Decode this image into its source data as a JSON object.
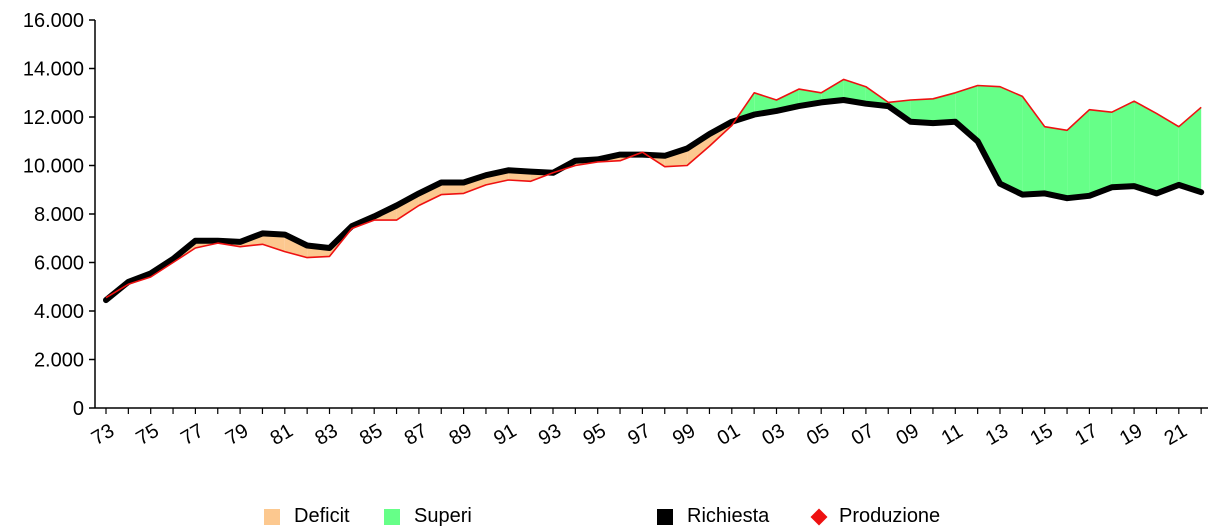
{
  "chart_data": {
    "type": "area",
    "x": [
      "73",
      "74",
      "75",
      "76",
      "77",
      "78",
      "79",
      "80",
      "81",
      "82",
      "83",
      "84",
      "85",
      "86",
      "87",
      "88",
      "89",
      "90",
      "91",
      "92",
      "93",
      "94",
      "95",
      "96",
      "97",
      "98",
      "99",
      "00",
      "01",
      "02",
      "03",
      "04",
      "05",
      "06",
      "07",
      "08",
      "09",
      "10",
      "11",
      "12",
      "13",
      "14",
      "15",
      "16",
      "17",
      "18",
      "19",
      "20",
      "21",
      "22"
    ],
    "x_tick_labels": [
      "73",
      "75",
      "77",
      "79",
      "81",
      "83",
      "85",
      "87",
      "89",
      "91",
      "93",
      "95",
      "97",
      "99",
      "01",
      "03",
      "05",
      "07",
      "09",
      "11",
      "13",
      "15",
      "17",
      "19",
      "21"
    ],
    "y_tick_labels": [
      "0",
      "2.000",
      "4.000",
      "6.000",
      "8.000",
      "10.000",
      "12.000",
      "14.000",
      "16.000"
    ],
    "ylim": [
      0,
      16000
    ],
    "grid": false,
    "legend_position": "bottom",
    "series": [
      {
        "name": "Richiesta",
        "color": "#000000",
        "values": [
          4450,
          5200,
          5550,
          6150,
          6900,
          6900,
          6850,
          7200,
          7150,
          6700,
          6600,
          7500,
          7900,
          8350,
          8850,
          9300,
          9300,
          9600,
          9800,
          9750,
          9700,
          10200,
          10250,
          10450,
          10450,
          10400,
          10700,
          11300,
          11800,
          12100,
          12250,
          12450,
          12600,
          12700,
          12550,
          12450,
          11800,
          11750,
          11800,
          11000,
          9250,
          8800,
          8850,
          8650,
          8750,
          9100,
          9150,
          8850,
          9200,
          8900
        ]
      },
      {
        "name": "Produzione",
        "color": "#ee1111",
        "values": [
          4550,
          5100,
          5400,
          6000,
          6600,
          6800,
          6650,
          6750,
          6450,
          6200,
          6250,
          7400,
          7750,
          7750,
          8350,
          8800,
          8850,
          9200,
          9400,
          9350,
          9700,
          10000,
          10150,
          10200,
          10550,
          9950,
          10000,
          10800,
          11650,
          13000,
          12700,
          13150,
          13000,
          13550,
          13250,
          12600,
          12700,
          12750,
          13000,
          13300,
          13250,
          12850,
          11600,
          11450,
          12300,
          12200,
          12650,
          12150,
          11600,
          12400
        ]
      }
    ],
    "fills": [
      {
        "name": "Deficit",
        "color": "#fcc88f",
        "between": "Produzione < Richiesta"
      },
      {
        "name": "Superi",
        "color": "#66ff88",
        "between": "Produzione > Richiesta"
      }
    ]
  },
  "legend": {
    "deficit": {
      "label": "Deficit",
      "color": "#fcc88f"
    },
    "superi": {
      "label": "Superi",
      "color": "#66ff88"
    },
    "richiesta": {
      "label": "Richiesta",
      "color": "#000000"
    },
    "produzione": {
      "label": "Produzione",
      "color": "#ee1111"
    }
  }
}
